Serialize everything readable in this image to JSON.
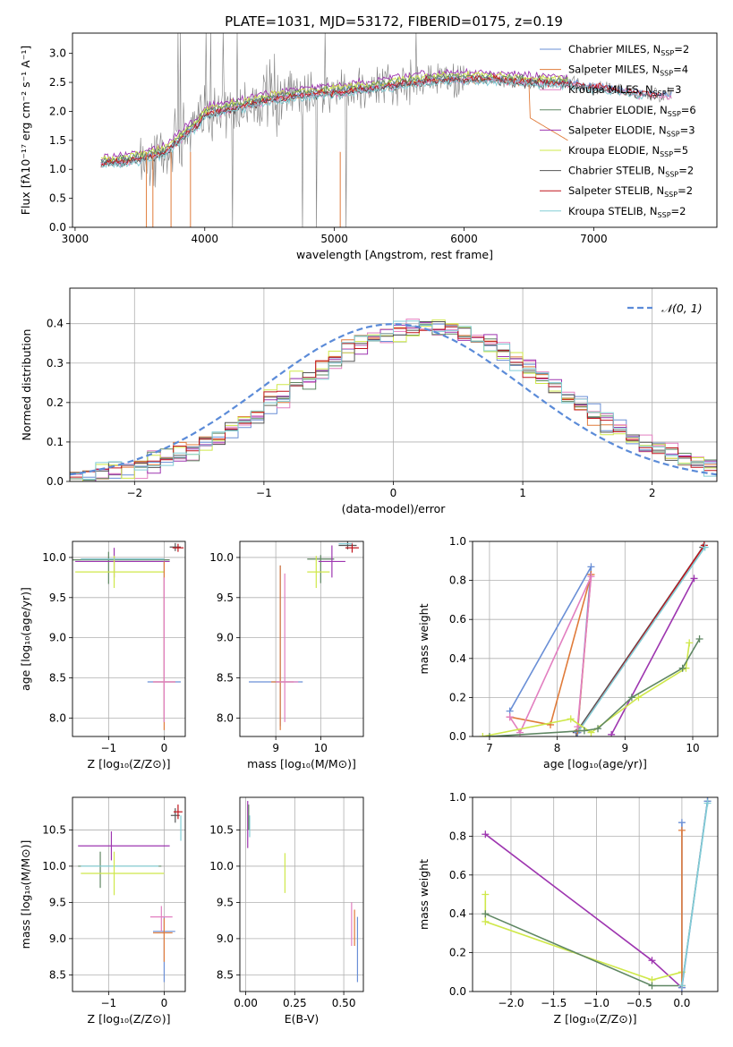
{
  "title": "PLATE=1031, MJD=53172, FIBERID=0175, z=0.19",
  "colors": {
    "chabrier_miles": "#6a8fd6",
    "salpeter_miles": "#e07b3a",
    "kroupa_miles": "#e27fc0",
    "chabrier_elodie": "#5f8763",
    "salpeter_elodie": "#9e36b0",
    "kroupa_elodie": "#cfe84a",
    "chabrier_stelib": "#555555",
    "salpeter_stelib": "#c0141c",
    "kroupa_stelib": "#82cdd6",
    "data": "#808080",
    "normal": "#5b8bd8"
  },
  "chart_data": [
    {
      "id": "spectrum",
      "type": "line",
      "xlabel": "wavelength [Angstrom, rest frame]",
      "ylabel": "Flux [fλ10⁻¹⁷ erg cm⁻² s⁻¹ A⁻¹]",
      "xlim": [
        2980,
        7950
      ],
      "ylim": [
        0,
        3.35
      ],
      "xticks": [
        "3000",
        "4000",
        "5000",
        "6000",
        "7000"
      ],
      "yticks": [
        "0.0",
        "0.5",
        "1.0",
        "1.5",
        "2.0",
        "2.5",
        "3.0"
      ],
      "legend": [
        {
          "label": "Chabrier MILES, N",
          "sub": "SSP",
          "tail": "=2",
          "color": "#6a8fd6"
        },
        {
          "label": "Salpeter MILES, N",
          "sub": "SSP",
          "tail": "=4",
          "color": "#e07b3a"
        },
        {
          "label": "Kroupa MILES, N",
          "sub": "SSP",
          "tail": "=3",
          "color": "#e27fc0"
        },
        {
          "label": "Chabrier ELODIE, N",
          "sub": "SSP",
          "tail": "=6",
          "color": "#5f8763"
        },
        {
          "label": "Salpeter ELODIE, N",
          "sub": "SSP",
          "tail": "=3",
          "color": "#9e36b0"
        },
        {
          "label": "Kroupa ELODIE, N",
          "sub": "SSP",
          "tail": "=5",
          "color": "#cfe84a"
        },
        {
          "label": "Chabrier STELIB, N",
          "sub": "SSP",
          "tail": "=2",
          "color": "#555555"
        },
        {
          "label": "Salpeter STELIB, N",
          "sub": "SSP",
          "tail": "=2",
          "color": "#c0141c"
        },
        {
          "label": "Kroupa STELIB, N",
          "sub": "SSP",
          "tail": "=2",
          "color": "#82cdd6"
        }
      ],
      "continuum": [
        [
          3200,
          1.1
        ],
        [
          3400,
          1.15
        ],
        [
          3550,
          1.2
        ],
        [
          3700,
          1.3
        ],
        [
          3800,
          1.5
        ],
        [
          3900,
          1.7
        ],
        [
          3950,
          1.75
        ],
        [
          4000,
          1.95
        ],
        [
          4200,
          2.05
        ],
        [
          4500,
          2.2
        ],
        [
          4800,
          2.3
        ],
        [
          5000,
          2.32
        ],
        [
          5300,
          2.4
        ],
        [
          5600,
          2.5
        ],
        [
          5900,
          2.55
        ],
        [
          6200,
          2.55
        ],
        [
          6500,
          2.5
        ],
        [
          6800,
          2.48
        ],
        [
          7100,
          2.4
        ],
        [
          7400,
          2.3
        ],
        [
          7600,
          2.25
        ]
      ]
    },
    {
      "id": "residuals",
      "type": "histogram",
      "xlabel": "(data-model)/error",
      "ylabel": "Normed distribution",
      "xlim": [
        -2.5,
        2.5
      ],
      "ylim": [
        0,
        0.49
      ],
      "xticks": [
        "−2",
        "−1",
        "0",
        "1",
        "2"
      ],
      "yticks": [
        "0.0",
        "0.1",
        "0.2",
        "0.3",
        "0.4"
      ],
      "legend": "𝒩(0, 1)",
      "bin_width": 0.1
    },
    {
      "id": "age_vs_Z",
      "type": "errorbar",
      "xlabel": "Z [log₁₀(Z/Z⊙)]",
      "ylabel": "age  [log₁₀(age/yr)]",
      "xlim": [
        -1.65,
        0.38
      ],
      "ylim": [
        7.77,
        10.2
      ],
      "xticks": [
        "−1",
        "0"
      ],
      "yticks": [
        "8.0",
        "8.5",
        "9.0",
        "9.5",
        "10.0"
      ]
    },
    {
      "id": "age_vs_mass",
      "type": "errorbar",
      "xlabel": "mass [log₁₀(M/M⊙)]",
      "xlim": [
        8.2,
        10.95
      ],
      "ylim": [
        7.77,
        10.2
      ],
      "xticks": [
        "9",
        "10"
      ],
      "yticks": [
        "8.0",
        "8.5",
        "9.0",
        "9.5",
        "10.0"
      ]
    },
    {
      "id": "mass_weight_vs_age",
      "type": "line",
      "xlabel": "age  [log₁₀(age/yr)]",
      "ylabel": "mass weight",
      "xlim": [
        6.75,
        10.37
      ],
      "ylim": [
        0,
        1
      ],
      "xticks": [
        "7",
        "8",
        "9",
        "10"
      ],
      "yticks": [
        "0.0",
        "0.2",
        "0.4",
        "0.6",
        "0.8",
        "1.0"
      ],
      "series": [
        {
          "color": "#555555",
          "points": [
            [
              8.28,
              0.02
            ],
            [
              10.15,
              0.97
            ]
          ]
        },
        {
          "color": "#c0141c",
          "points": [
            [
              8.3,
              0.02
            ],
            [
              10.17,
              0.98
            ]
          ]
        },
        {
          "color": "#82cdd6",
          "points": [
            [
              8.32,
              0.03
            ],
            [
              10.18,
              0.97
            ]
          ]
        },
        {
          "color": "#6a8fd6",
          "points": [
            [
              7.3,
              0.13
            ],
            [
              8.5,
              0.87
            ],
            [
              8.3,
              0.02
            ]
          ]
        },
        {
          "color": "#e07b3a",
          "points": [
            [
              7.3,
              0.1
            ],
            [
              7.9,
              0.06
            ],
            [
              8.5,
              0.83
            ],
            [
              8.3,
              0.03
            ]
          ]
        },
        {
          "color": "#e27fc0",
          "points": [
            [
              7.3,
              0.1
            ],
            [
              7.45,
              0.02
            ],
            [
              8.5,
              0.82
            ],
            [
              8.3,
              0.05
            ]
          ]
        },
        {
          "color": "#9e36b0",
          "points": [
            [
              8.8,
              0.01
            ],
            [
              10.02,
              0.81
            ]
          ]
        },
        {
          "color": "#cfe84a",
          "points": [
            [
              6.9,
              0.0
            ],
            [
              8.2,
              0.09
            ],
            [
              8.5,
              0.02
            ],
            [
              9.2,
              0.2
            ],
            [
              9.9,
              0.35
            ],
            [
              9.95,
              0.48
            ]
          ]
        },
        {
          "color": "#5f8763",
          "points": [
            [
              7.0,
              0.0
            ],
            [
              8.4,
              0.03
            ],
            [
              8.6,
              0.04
            ],
            [
              9.1,
              0.2
            ],
            [
              9.85,
              0.35
            ],
            [
              10.1,
              0.5
            ]
          ]
        }
      ]
    },
    {
      "id": "mass_vs_Z",
      "type": "errorbar",
      "xlabel": "Z [log₁₀(Z/Z⊙)]",
      "ylabel": "mass [log₁₀(M/M⊙)]",
      "xlim": [
        -1.65,
        0.38
      ],
      "ylim": [
        8.27,
        10.95
      ],
      "xticks": [
        "−1",
        "0"
      ],
      "yticks": [
        "8.5",
        "9.0",
        "9.5",
        "10.0",
        "10.5"
      ]
    },
    {
      "id": "mass_vs_ebv",
      "type": "errorbar",
      "xlabel": "E(B-V)",
      "xlim": [
        -0.03,
        0.6
      ],
      "ylim": [
        8.27,
        10.95
      ],
      "xticks": [
        "0.00",
        "0.25",
        "0.50"
      ],
      "yticks": [
        "8.5",
        "9.0",
        "9.5",
        "10.0",
        "10.5"
      ]
    },
    {
      "id": "mass_weight_vs_Z",
      "type": "line",
      "xlabel": "Z [log₁₀(Z/Z⊙)]",
      "ylabel": "mass weight",
      "xlim": [
        -2.45,
        0.42
      ],
      "ylim": [
        0,
        1
      ],
      "xticks": [
        "−2.0",
        "−1.5",
        "−1.0",
        "−0.5",
        "0.0"
      ],
      "yticks": [
        "0.0",
        "0.2",
        "0.4",
        "0.6",
        "0.8",
        "1.0"
      ],
      "series": [
        {
          "color": "#9e36b0",
          "points": [
            [
              -2.3,
              0.81
            ],
            [
              -0.35,
              0.16
            ],
            [
              0.0,
              0.02
            ]
          ]
        },
        {
          "color": "#cfe84a",
          "points": [
            [
              -2.3,
              0.5
            ],
            [
              -2.3,
              0.36
            ],
            [
              -0.35,
              0.06
            ],
            [
              0.0,
              0.1
            ]
          ]
        },
        {
          "color": "#5f8763",
          "points": [
            [
              -2.3,
              0.4
            ],
            [
              -0.35,
              0.03
            ],
            [
              0.0,
              0.03
            ],
            [
              0.3,
              0.98
            ]
          ]
        },
        {
          "color": "#6a8fd6",
          "points": [
            [
              0.0,
              0.87
            ],
            [
              0.0,
              0.02
            ],
            [
              0.3,
              0.98
            ]
          ]
        },
        {
          "color": "#e07b3a",
          "points": [
            [
              0.0,
              0.83
            ],
            [
              0.0,
              0.03
            ]
          ]
        },
        {
          "color": "#82cdd6",
          "points": [
            [
              0.0,
              0.03
            ],
            [
              0.3,
              0.97
            ]
          ]
        }
      ]
    }
  ]
}
